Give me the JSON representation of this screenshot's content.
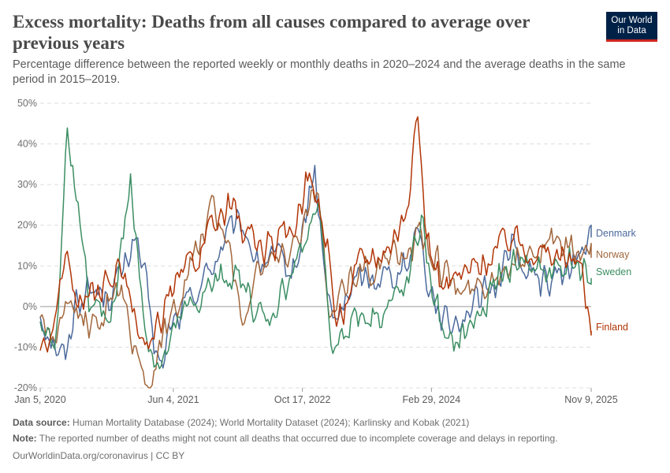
{
  "header": {
    "title": "Excess mortality: Deaths from all causes compared to average over previous years",
    "subtitle": "Percentage difference between the reported weekly or monthly deaths in 2020–2024 and the average deaths in the same period in 2015–2019."
  },
  "logo": {
    "line1": "Our World",
    "line2": "in Data"
  },
  "footer": {
    "source_label": "Data source:",
    "source_text": "Human Mortality Database (2024); World Mortality Dataset (2024); Karlinsky and Kobak (2021)",
    "note_label": "Note:",
    "note_text": "The reported number of deaths might not count all deaths that occurred due to incomplete coverage and delays in reporting.",
    "credit": "OurWorldinData.org/coronavirus | CC BY"
  },
  "chart_data": {
    "type": "line",
    "title": "Excess mortality: Deaths from all causes compared to average over previous years",
    "x_start": "2020-01-05",
    "x_end": "2025-11-09",
    "x_ticks": [
      "Jan 5, 2020",
      "Jun 4, 2021",
      "Oct 17, 2022",
      "Feb 29, 2024",
      "Nov 9, 2025"
    ],
    "y_ticks": [
      "50%",
      "40%",
      "30%",
      "20%",
      "10%",
      "0%",
      "-10%",
      "-20%"
    ],
    "ylim": [
      -20,
      50
    ],
    "y_unit": "%",
    "grid": true,
    "legend": "right, labels at line ends",
    "series": [
      {
        "name": "Denmark",
        "color": "#4c6a9c",
        "points": [
          [
            "2020-01-05",
            -2
          ],
          [
            "2020-03-01",
            -9
          ],
          [
            "2020-04-15",
            -13
          ],
          [
            "2020-05-20",
            2
          ],
          [
            "2020-08-01",
            4
          ],
          [
            "2020-10-01",
            3
          ],
          [
            "2020-12-01",
            10
          ],
          [
            "2021-01-05",
            18
          ],
          [
            "2021-02-15",
            6
          ],
          [
            "2021-03-20",
            -8
          ],
          [
            "2021-04-20",
            -17
          ],
          [
            "2021-05-20",
            -5
          ],
          [
            "2021-07-01",
            -2
          ],
          [
            "2021-09-01",
            4
          ],
          [
            "2021-11-01",
            10
          ],
          [
            "2022-01-05",
            18
          ],
          [
            "2022-03-01",
            20
          ],
          [
            "2022-05-01",
            10
          ],
          [
            "2022-07-01",
            12
          ],
          [
            "2022-09-01",
            8
          ],
          [
            "2022-10-01",
            12
          ],
          [
            "2022-12-01",
            34
          ],
          [
            "2023-01-15",
            6
          ],
          [
            "2023-02-15",
            -5
          ],
          [
            "2023-05-01",
            6
          ],
          [
            "2023-09-01",
            8
          ],
          [
            "2023-12-01",
            10
          ],
          [
            "2024-01-05",
            22
          ],
          [
            "2024-02-15",
            6
          ],
          [
            "2024-05-01",
            -5
          ],
          [
            "2024-08-01",
            0
          ],
          [
            "2024-11-01",
            5
          ],
          [
            "2025-01-05",
            16
          ],
          [
            "2025-03-01",
            8
          ],
          [
            "2025-06-01",
            6
          ],
          [
            "2025-09-01",
            10
          ],
          [
            "2025-11-09",
            17
          ]
        ]
      },
      {
        "name": "Norway",
        "color": "#a2663b",
        "points": [
          [
            "2020-01-05",
            -2
          ],
          [
            "2020-03-01",
            -8
          ],
          [
            "2020-05-01",
            0
          ],
          [
            "2020-08-01",
            -5
          ],
          [
            "2020-11-01",
            5
          ],
          [
            "2021-01-05",
            -9
          ],
          [
            "2021-03-01",
            -20
          ],
          [
            "2021-05-01",
            -6
          ],
          [
            "2021-08-01",
            8
          ],
          [
            "2021-11-01",
            24
          ],
          [
            "2022-01-05",
            16
          ],
          [
            "2022-03-01",
            -5
          ],
          [
            "2022-05-01",
            12
          ],
          [
            "2022-08-01",
            12
          ],
          [
            "2022-10-17",
            20
          ],
          [
            "2022-12-15",
            30
          ],
          [
            "2023-02-01",
            -5
          ],
          [
            "2023-04-15",
            8
          ],
          [
            "2023-08-01",
            10
          ],
          [
            "2023-12-01",
            14
          ],
          [
            "2024-01-20",
            18
          ],
          [
            "2024-04-01",
            10
          ],
          [
            "2024-07-01",
            3
          ],
          [
            "2024-10-01",
            6
          ],
          [
            "2025-01-05",
            12
          ],
          [
            "2025-04-01",
            14
          ],
          [
            "2025-07-01",
            16
          ],
          [
            "2025-09-01",
            13
          ],
          [
            "2025-11-09",
            12
          ]
        ]
      },
      {
        "name": "Sweden",
        "color": "#3b8e63",
        "points": [
          [
            "2020-01-05",
            -3
          ],
          [
            "2020-03-01",
            -10
          ],
          [
            "2020-03-20",
            5
          ],
          [
            "2020-04-20",
            46
          ],
          [
            "2020-05-10",
            35
          ],
          [
            "2020-06-10",
            15
          ],
          [
            "2020-07-20",
            0
          ],
          [
            "2020-10-01",
            -4
          ],
          [
            "2020-11-15",
            15
          ],
          [
            "2020-12-20",
            30
          ],
          [
            "2021-01-20",
            10
          ],
          [
            "2021-03-01",
            -10
          ],
          [
            "2021-04-20",
            -15
          ],
          [
            "2021-07-01",
            -3
          ],
          [
            "2021-10-01",
            3
          ],
          [
            "2022-01-01",
            8
          ],
          [
            "2022-03-01",
            5
          ],
          [
            "2022-06-01",
            -5
          ],
          [
            "2022-09-01",
            8
          ],
          [
            "2022-11-15",
            18
          ],
          [
            "2022-12-20",
            30
          ],
          [
            "2023-02-01",
            -11
          ],
          [
            "2023-05-01",
            -3
          ],
          [
            "2023-09-01",
            -1
          ],
          [
            "2023-12-01",
            5
          ],
          [
            "2024-01-20",
            22
          ],
          [
            "2024-03-01",
            5
          ],
          [
            "2024-05-01",
            -11
          ],
          [
            "2024-08-01",
            -5
          ],
          [
            "2024-11-01",
            5
          ],
          [
            "2025-02-01",
            12
          ],
          [
            "2025-05-01",
            8
          ],
          [
            "2025-09-01",
            11
          ],
          [
            "2025-11-09",
            7
          ]
        ]
      },
      {
        "name": "Finland",
        "color": "#b13507",
        "points": [
          [
            "2020-01-05",
            -10
          ],
          [
            "2020-02-15",
            -8
          ],
          [
            "2020-04-15",
            13
          ],
          [
            "2020-06-01",
            0
          ],
          [
            "2020-09-01",
            4
          ],
          [
            "2020-11-01",
            10
          ],
          [
            "2021-01-01",
            -3
          ],
          [
            "2021-03-01",
            -12
          ],
          [
            "2021-05-01",
            0
          ],
          [
            "2021-08-01",
            10
          ],
          [
            "2021-11-01",
            18
          ],
          [
            "2022-01-15",
            25
          ],
          [
            "2022-03-15",
            18
          ],
          [
            "2022-06-01",
            14
          ],
          [
            "2022-09-01",
            18
          ],
          [
            "2022-11-15",
            33
          ],
          [
            "2023-01-20",
            15
          ],
          [
            "2023-03-01",
            -5
          ],
          [
            "2023-06-01",
            12
          ],
          [
            "2023-09-01",
            14
          ],
          [
            "2023-11-15",
            22
          ],
          [
            "2023-12-25",
            38
          ],
          [
            "2024-01-08",
            45
          ],
          [
            "2024-02-10",
            18
          ],
          [
            "2024-04-01",
            5
          ],
          [
            "2024-07-01",
            8
          ],
          [
            "2024-10-01",
            12
          ],
          [
            "2025-01-05",
            18
          ],
          [
            "2025-04-01",
            14
          ],
          [
            "2025-07-01",
            12
          ],
          [
            "2025-10-01",
            10
          ],
          [
            "2025-11-09",
            -6
          ]
        ]
      }
    ]
  }
}
